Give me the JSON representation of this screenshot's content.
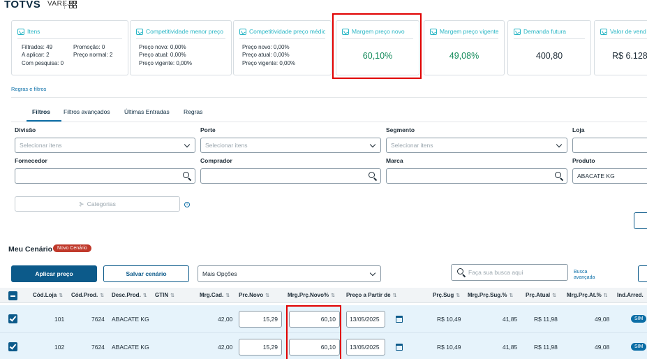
{
  "header": {
    "brand": "TOTVS",
    "product": "VAREJO",
    "apps_icon": "grid-apps-icon"
  },
  "cards": {
    "itens": {
      "title": "Itens",
      "filtrados": "Filtrados: 49",
      "a_aplicar": "A aplicar: 2",
      "com_pesquisa": "Com pesquisa: 0",
      "promocao": "Promoção: 0",
      "preco_normal": "Preço normal: 2"
    },
    "comp_menor": {
      "title": "Competitividade menor preço",
      "preco_novo": "Preço novo: 0,00%",
      "preco_atual": "Preço atual: 0,00%",
      "preco_vigente": "Preço vigente: 0,00%"
    },
    "comp_medio": {
      "title": "Competitividade preço médio",
      "preco_novo": "Preço novo: 0,00%",
      "preco_atual": "Preço atual: 0,00%",
      "preco_vigente": "Preço vigente: 0,00%"
    },
    "margem_novo": {
      "title": "Margem preço novo",
      "value": "60,10%"
    },
    "margem_vigente": {
      "title": "Margem preço vigente",
      "value": "49,08%"
    },
    "demanda": {
      "title": "Demanda futura",
      "value": "400,80"
    },
    "valor_venda": {
      "title": "Valor de vend",
      "value": "R$ 6.128"
    }
  },
  "regras_link": "Regras e filtros",
  "tabs": [
    {
      "label": "Filtros",
      "active": true
    },
    {
      "label": "Filtros avançados"
    },
    {
      "label": "Últimas Entradas"
    },
    {
      "label": "Regras"
    }
  ],
  "filters": {
    "divisao": {
      "label": "Divisão",
      "placeholder": "Selecionar itens"
    },
    "porte": {
      "label": "Porte",
      "placeholder": "Selecionar itens"
    },
    "segmento": {
      "label": "Segmento",
      "placeholder": "Selecionar itens"
    },
    "loja": {
      "label": "Loja"
    },
    "fornecedor": {
      "label": "Fornecedor",
      "value": ""
    },
    "comprador": {
      "label": "Comprador",
      "value": ""
    },
    "marca": {
      "label": "Marca",
      "value": ""
    },
    "produto": {
      "label": "Produto",
      "value": "ABACATE KG"
    },
    "categorias": "Categorias"
  },
  "scenario": {
    "title": "Meu Cenário",
    "badge": "Novo Cenário",
    "apply": "Aplicar preço",
    "save": "Salvar cenário",
    "options": "Mais Opções",
    "search_placeholder": "Faça sua busca aqui",
    "advanced": "Busca avançada"
  },
  "table": {
    "headers": [
      "Cód.Loja",
      "Cód.Prod.",
      "Desc.Prod.",
      "GTIN",
      "Mrg.Cad.",
      "Prc.Novo",
      "Mrg.Prç.Novo%",
      "Preço a Partir de",
      "Prç.Sug",
      "Mrg.Prç.Sug.%",
      "Prç.Atual",
      "Mrg.Prç.At.%",
      "Ind.Arred."
    ],
    "sort_glyph": "⇅",
    "rows": [
      {
        "loja": "101",
        "prod": "7624",
        "desc": "ABACATE KG",
        "mrg_cad": "42,00",
        "prc_novo": "15,29",
        "mrg_novo": "60,10",
        "data": "13/05/2025",
        "prc_sug": "R$ 10,49",
        "mrg_sug": "41,85",
        "prc_atual": "R$ 11,98",
        "mrg_at": "49,08",
        "arred": "SIM"
      },
      {
        "loja": "102",
        "prod": "7624",
        "desc": "ABACATE KG",
        "mrg_cad": "42,00",
        "prc_novo": "15,29",
        "mrg_novo": "60,10",
        "data": "13/05/2025",
        "prc_sug": "R$ 10,49",
        "mrg_sug": "41,85",
        "prc_atual": "R$ 11,98",
        "mrg_at": "49,08",
        "arred": "SIM"
      }
    ]
  }
}
